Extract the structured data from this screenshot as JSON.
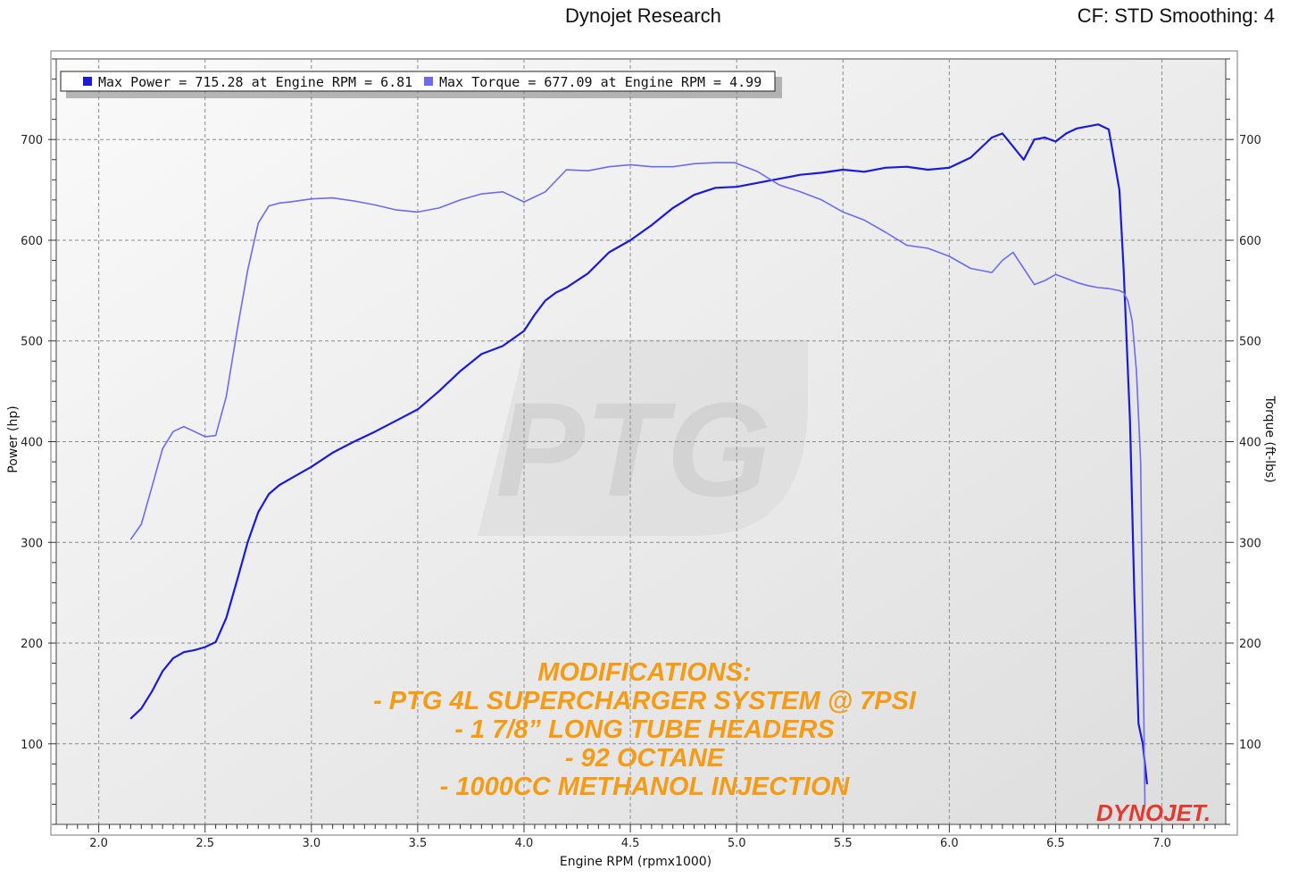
{
  "header": {
    "title": "Dynojet Research",
    "right_info": "CF: STD Smoothing: 4"
  },
  "legend": {
    "power_text": "Max Power = 715.28 at Engine RPM = 6.81",
    "torque_text": "Max Torque = 677.09 at Engine RPM = 4.99"
  },
  "watermark": "PTG",
  "logo": "DYNOJET.",
  "modifications": [
    "MODIFICATIONS:",
    "- PTG 4L SUPERCHARGER SYSTEM @ 7PSI",
    "- 1 7/8” LONG TUBE HEADERS",
    "- 92 OCTANE",
    "- 1000CC METHANOL INJECTION"
  ],
  "colors": {
    "power": "#1a1adc",
    "torque": "#6b6bf0",
    "annotation": "#f59b16",
    "plot_bg": "#ebebeb"
  },
  "chart_data": {
    "type": "line",
    "xlabel": "Engine RPM (rpmx1000)",
    "ylabel": "Power (hp)",
    "y2label": "Torque (ft-lbs)",
    "xlim": [
      1.8,
      7.3
    ],
    "ylim": [
      20,
      780
    ],
    "grid": true,
    "legend_position": "top-left",
    "x_ticks": [
      "2.0",
      "2.5",
      "3.0",
      "3.5",
      "4.0",
      "4.5",
      "5.0",
      "5.5",
      "6.0",
      "6.5",
      "7.0"
    ],
    "y_ticks": [
      "100",
      "200",
      "300",
      "400",
      "500",
      "600",
      "700"
    ],
    "series": [
      {
        "name": "Max Power",
        "axis": "left",
        "x": [
          2.15,
          2.2,
          2.25,
          2.3,
          2.35,
          2.4,
          2.45,
          2.5,
          2.55,
          2.6,
          2.65,
          2.7,
          2.75,
          2.8,
          2.85,
          2.9,
          3.0,
          3.1,
          3.2,
          3.3,
          3.4,
          3.5,
          3.6,
          3.7,
          3.8,
          3.9,
          4.0,
          4.05,
          4.1,
          4.15,
          4.2,
          4.3,
          4.4,
          4.5,
          4.6,
          4.7,
          4.8,
          4.9,
          5.0,
          5.1,
          5.2,
          5.3,
          5.4,
          5.5,
          5.6,
          5.7,
          5.8,
          5.9,
          6.0,
          6.1,
          6.2,
          6.25,
          6.3,
          6.35,
          6.4,
          6.45,
          6.5,
          6.55,
          6.6,
          6.65,
          6.7,
          6.75,
          6.8,
          6.82,
          6.85,
          6.87,
          6.89,
          6.91,
          6.93
        ],
        "y": [
          125,
          135,
          152,
          172,
          185,
          191,
          193,
          196,
          201,
          225,
          262,
          300,
          330,
          348,
          357,
          363,
          375,
          389,
          400,
          410,
          421,
          432,
          450,
          470,
          487,
          495,
          510,
          526,
          540,
          548,
          553,
          567,
          588,
          600,
          615,
          632,
          645,
          652,
          653,
          657,
          661,
          665,
          667,
          670,
          668,
          672,
          673,
          670,
          672,
          682,
          702,
          706,
          693,
          680,
          700,
          702,
          698,
          706,
          711,
          713,
          715,
          710,
          650,
          570,
          420,
          250,
          120,
          100,
          60
        ]
      },
      {
        "name": "Max Torque",
        "axis": "right",
        "x": [
          2.15,
          2.2,
          2.25,
          2.3,
          2.35,
          2.4,
          2.45,
          2.5,
          2.55,
          2.6,
          2.65,
          2.7,
          2.75,
          2.8,
          2.85,
          2.9,
          3.0,
          3.1,
          3.2,
          3.3,
          3.4,
          3.5,
          3.6,
          3.7,
          3.8,
          3.9,
          4.0,
          4.1,
          4.2,
          4.3,
          4.4,
          4.5,
          4.6,
          4.7,
          4.8,
          4.9,
          4.99,
          5.1,
          5.2,
          5.3,
          5.4,
          5.5,
          5.6,
          5.7,
          5.8,
          5.9,
          6.0,
          6.1,
          6.2,
          6.25,
          6.3,
          6.35,
          6.4,
          6.45,
          6.5,
          6.55,
          6.6,
          6.65,
          6.7,
          6.75,
          6.8,
          6.82,
          6.84,
          6.86,
          6.88,
          6.9,
          6.92
        ],
        "y": [
          303,
          318,
          355,
          393,
          410,
          415,
          410,
          405,
          406,
          445,
          510,
          570,
          617,
          634,
          637,
          638,
          641,
          642,
          639,
          635,
          630,
          628,
          632,
          640,
          646,
          648,
          638,
          648,
          670,
          669,
          673,
          675,
          673,
          673,
          676,
          677,
          677,
          668,
          655,
          648,
          640,
          628,
          620,
          608,
          595,
          592,
          584,
          572,
          568,
          580,
          588,
          572,
          556,
          560,
          566,
          562,
          558,
          555,
          553,
          552,
          550,
          548,
          540,
          520,
          470,
          380,
          40
        ]
      }
    ]
  }
}
